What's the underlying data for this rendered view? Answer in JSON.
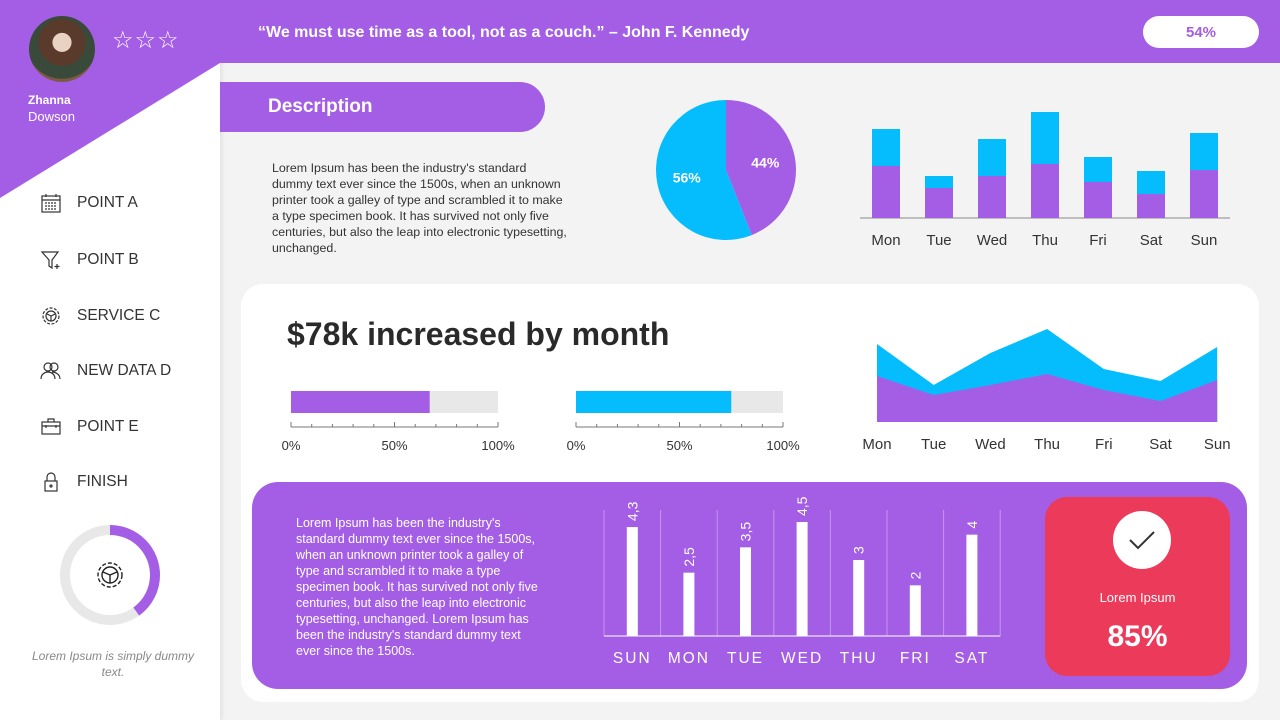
{
  "colors": {
    "primary": "#a45ee5",
    "secondary": "#05bdfd",
    "accent": "#ec3a5a",
    "track": "#e8e8e8"
  },
  "profile": {
    "first_name": "Zhanna",
    "last_name": "Dowson",
    "stars": "☆☆☆",
    "rating_stars": 3
  },
  "sidebar": {
    "items": [
      {
        "label": "POINT A",
        "icon": "calendar-icon"
      },
      {
        "label": "POINT B",
        "icon": "funnel-plus-icon"
      },
      {
        "label": "SERVICE C",
        "icon": "gear-steering-icon"
      },
      {
        "label": "NEW DATA D",
        "icon": "users-icon"
      },
      {
        "label": "POINT E",
        "icon": "toolbox-icon"
      },
      {
        "label": "FINISH",
        "icon": "lock-icon"
      }
    ],
    "donut": {
      "value": 0.4,
      "icon": "gear-steering-icon"
    },
    "caption": "Lorem Ipsum is simply dummy text."
  },
  "header": {
    "quote": "“We must use time as a tool, not as a couch.” – John F. Kennedy",
    "badge": "54%"
  },
  "description": {
    "title": "Description",
    "text": "Lorem Ipsum has been the industry's standard dummy text ever since the 1500s, when an unknown printer took a galley of type and scrambled it to make a type specimen book. It has survived not only five centuries, but also the leap into electronic typesetting, unchanged."
  },
  "main": {
    "title": "$78k increased by month",
    "progress": [
      {
        "value": 67,
        "color": "#a45ee5"
      },
      {
        "value": 75,
        "color": "#05bdfd"
      }
    ],
    "progress_ticks": [
      "0%",
      "50%",
      "100%"
    ]
  },
  "bottom": {
    "text": "Lorem Ipsum has been the industry's standard dummy text ever since the 1500s, when an unknown printer took a galley of type and scrambled it to make a type specimen book. It has survived not only five centuries, but also the leap into electronic typesetting, unchanged.  Lorem Ipsum has been the industry's standard dummy text ever since the 1500s.",
    "kpi": {
      "label": "Lorem Ipsum",
      "value": "85%",
      "icon": "check-icon"
    }
  },
  "chart_data": [
    {
      "type": "pie",
      "slices": [
        {
          "label": "44%",
          "value": 44,
          "color": "#a45ee5"
        },
        {
          "label": "56%",
          "value": 56,
          "color": "#05bdfd"
        }
      ]
    },
    {
      "type": "bar",
      "stacked": true,
      "categories": [
        "Mon",
        "Tue",
        "Wed",
        "Thu",
        "Fri",
        "Sat",
        "Sun"
      ],
      "series": [
        {
          "values": [
            52,
            30,
            42,
            54,
            36,
            24,
            48
          ],
          "color": "#a45ee5"
        },
        {
          "values": [
            37,
            12,
            37,
            52,
            25,
            23,
            37
          ],
          "color": "#05bdfd"
        }
      ],
      "grid": false
    },
    {
      "type": "area",
      "categories": [
        "Mon",
        "Tue",
        "Wed",
        "Thu",
        "Fri",
        "Sat",
        "Sun"
      ],
      "series": [
        {
          "values": [
            78,
            37,
            69,
            93,
            53,
            41,
            75
          ],
          "color": "#05bdfd"
        },
        {
          "values": [
            46,
            27,
            37,
            48,
            32,
            21,
            42
          ],
          "color": "#a45ee5"
        }
      ]
    },
    {
      "type": "bar",
      "categories": [
        "SUN",
        "MON",
        "TUE",
        "WED",
        "THU",
        "FRI",
        "SAT"
      ],
      "values": [
        4.3,
        2.5,
        3.5,
        4.5,
        3,
        2,
        4
      ],
      "labels": [
        "4,3",
        "2,5",
        "3,5",
        "4,5",
        "3",
        "2",
        "4"
      ],
      "ylim": [
        0,
        4.5
      ],
      "grid": "vertical"
    }
  ]
}
